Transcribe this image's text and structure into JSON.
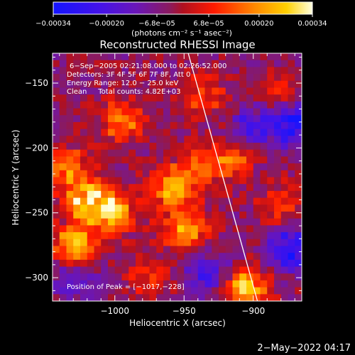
{
  "chart_data": {
    "type": "heatmap",
    "title": "Reconstructed RHESSI Image",
    "xlabel": "Heliocentric X (arcsec)",
    "ylabel": "Heliocentric Y (arcsec)",
    "xlim": [
      -1045,
      -865
    ],
    "ylim": [
      -318,
      -127
    ],
    "x_ticks": [
      -1000,
      -950,
      -900
    ],
    "x_tick_labels": [
      "−1000",
      "−950",
      "−900"
    ],
    "y_ticks": [
      -150,
      -200,
      -250,
      -300
    ],
    "y_tick_labels": [
      "−150",
      "−200",
      "−250",
      "−300"
    ],
    "colorbar": {
      "min": -0.00034,
      "max": 0.00034,
      "ticks": [
        -0.00034,
        -0.0002,
        -6.8e-05,
        6.8e-05,
        0.0002,
        0.00034
      ],
      "tick_labels": [
        "−0.00034",
        "−0.00020",
        "−6.8e−05",
        "6.8e−05",
        "0.00020",
        "0.00034"
      ],
      "unit_label": "(photons cm⁻² s⁻¹ asec⁻²)"
    },
    "annotations": [
      "6−Sep−2005 02:21:08.000 to 02:26:52.000",
      "Detectors: 3F 4F 5F 6F 7F 8F, Att 0",
      "Energy Range: 12.0 − 25.0 keV",
      "Clean     Total counts: 4.82E+03",
      "Position of Peak = [−1017,−228]"
    ],
    "peak": {
      "x": -1017,
      "y": -228
    },
    "limb": {
      "x_top": -947,
      "x_bottom": -897
    },
    "hot_regions": [
      {
        "x": -1030,
        "y": -275,
        "value": 0.0003
      },
      {
        "x": -1020,
        "y": -240,
        "value": 0.00034
      },
      {
        "x": -1000,
        "y": -250,
        "value": 0.00026
      },
      {
        "x": -995,
        "y": -180,
        "value": 0.00022
      },
      {
        "x": -1035,
        "y": -215,
        "value": 0.0002
      },
      {
        "x": -960,
        "y": -230,
        "value": 0.00024
      },
      {
        "x": -950,
        "y": -262,
        "value": 0.00028
      },
      {
        "x": -940,
        "y": -215,
        "value": 0.00018
      },
      {
        "x": -935,
        "y": -160,
        "value": 0.00016
      },
      {
        "x": -915,
        "y": -210,
        "value": 0.00018
      },
      {
        "x": -905,
        "y": -310,
        "value": 0.0003
      },
      {
        "x": -880,
        "y": -245,
        "value": 0.00014
      },
      {
        "x": -975,
        "y": -300,
        "value": 0.00012
      },
      {
        "x": -880,
        "y": -160,
        "value": 0.00012
      }
    ],
    "cold_regions": [
      {
        "x": -872,
        "y": -180,
        "value": -0.0003
      },
      {
        "x": -873,
        "y": -277,
        "value": -0.00028
      },
      {
        "x": -900,
        "y": -185,
        "value": -0.00018
      },
      {
        "x": -932,
        "y": -298,
        "value": -0.00016
      },
      {
        "x": -1030,
        "y": -300,
        "value": -0.00012
      }
    ]
  },
  "footer": {
    "timestamp": "2−May−2022 04:17"
  }
}
